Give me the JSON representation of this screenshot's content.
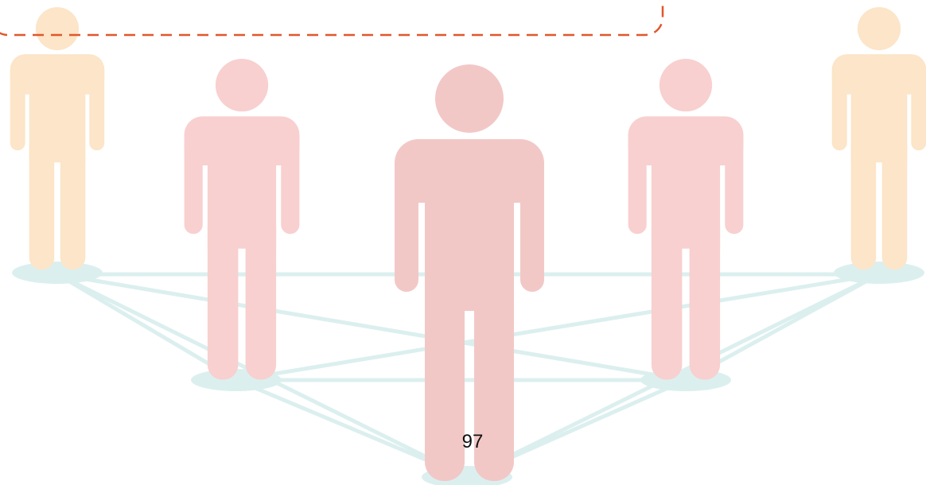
{
  "page_number": "97"
}
